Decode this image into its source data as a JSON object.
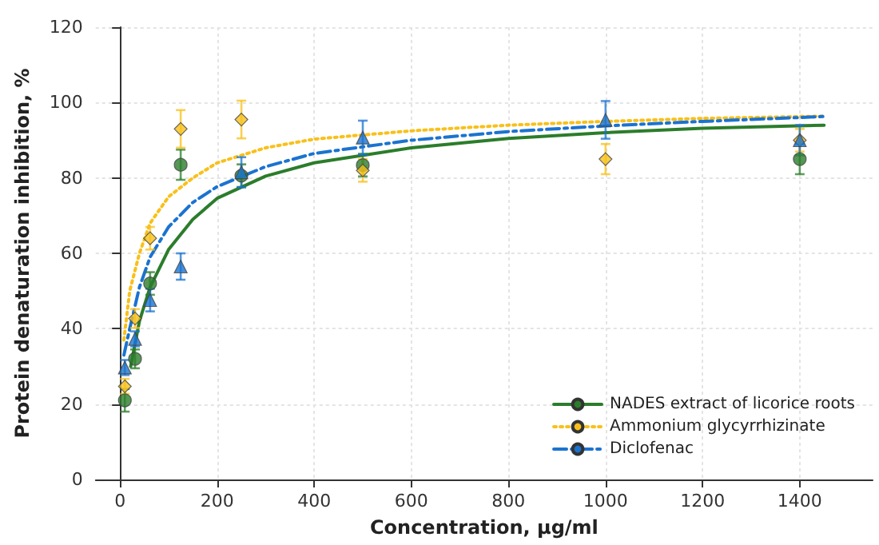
{
  "chart_data": {
    "type": "scatter",
    "xlabel": "Concentration, µg/ml",
    "ylabel": "Protein denaturation inhibition, %",
    "xlim": [
      -50,
      1550
    ],
    "xticks": [
      0,
      200,
      400,
      600,
      800,
      1000,
      1200,
      1400
    ],
    "ylim": [
      0,
      120
    ],
    "yticks": [
      0,
      20,
      40,
      60,
      80,
      100,
      120
    ],
    "grid": true,
    "legend": "bottom right",
    "series": [
      {
        "type": "line",
        "name": "NADES extract of licorice roots",
        "color": "#2b7d2b",
        "marker": "none",
        "line_style": "solid",
        "x": [
          22,
          40,
          62,
          100,
          150,
          200,
          300,
          400,
          600,
          800,
          1000,
          1200,
          1450
        ],
        "values": [
          30,
          42,
          51,
          61,
          69,
          74.6,
          80.5,
          84,
          88,
          90.5,
          92,
          93.2,
          94
        ]
      },
      {
        "type": "line",
        "name": "Ammonium glycyrrhizinate",
        "color": "#f8c01a",
        "marker": "none",
        "line_style": "dotted",
        "x": [
          8,
          20,
          40,
          62,
          100,
          150,
          200,
          300,
          400,
          600,
          800,
          1000,
          1200,
          1450
        ],
        "values": [
          37,
          50,
          60,
          68,
          75,
          80,
          84,
          88,
          90.3,
          92.5,
          94,
          95,
          95.8,
          96.4
        ]
      },
      {
        "type": "line",
        "name": "Diclofenac",
        "color": "#1a73d0",
        "marker": "none",
        "line_style": "dashdot",
        "x": [
          8,
          20,
          40,
          62,
          100,
          150,
          200,
          300,
          400,
          600,
          800,
          1000,
          1200,
          1450
        ],
        "values": [
          33,
          40,
          51,
          59,
          67,
          73.5,
          77.7,
          83,
          86.5,
          90,
          92.3,
          93.8,
          95,
          96.3
        ]
      },
      {
        "color": "#2b7d2b",
        "marker": "circle",
        "x": [
          10,
          31,
          62,
          125,
          250,
          500,
          1000,
          1400
        ],
        "values": [
          21,
          32,
          52,
          83.5,
          80.6,
          83.4,
          null,
          85
        ],
        "errors": [
          3,
          2.5,
          3,
          4,
          3,
          3,
          null,
          4
        ]
      },
      {
        "color": "#f8c01a",
        "marker": "diamond",
        "x": [
          10,
          31,
          62,
          125,
          250,
          500,
          1000,
          1400
        ],
        "values": [
          24.7,
          42.7,
          64,
          93,
          95.5,
          82,
          85,
          90
        ],
        "errors": [
          2,
          2.5,
          3,
          5,
          5,
          3,
          4,
          3
        ]
      },
      {
        "color": "#1a73d0",
        "marker": "triangle",
        "x": [
          10,
          31,
          62,
          125,
          250,
          500,
          1000,
          1400
        ],
        "values": [
          29.7,
          37.3,
          47.6,
          56.5,
          81.5,
          90.7,
          95.4,
          90
        ],
        "errors": [
          2,
          2,
          3,
          3.5,
          4,
          4.5,
          5,
          4
        ]
      }
    ]
  }
}
